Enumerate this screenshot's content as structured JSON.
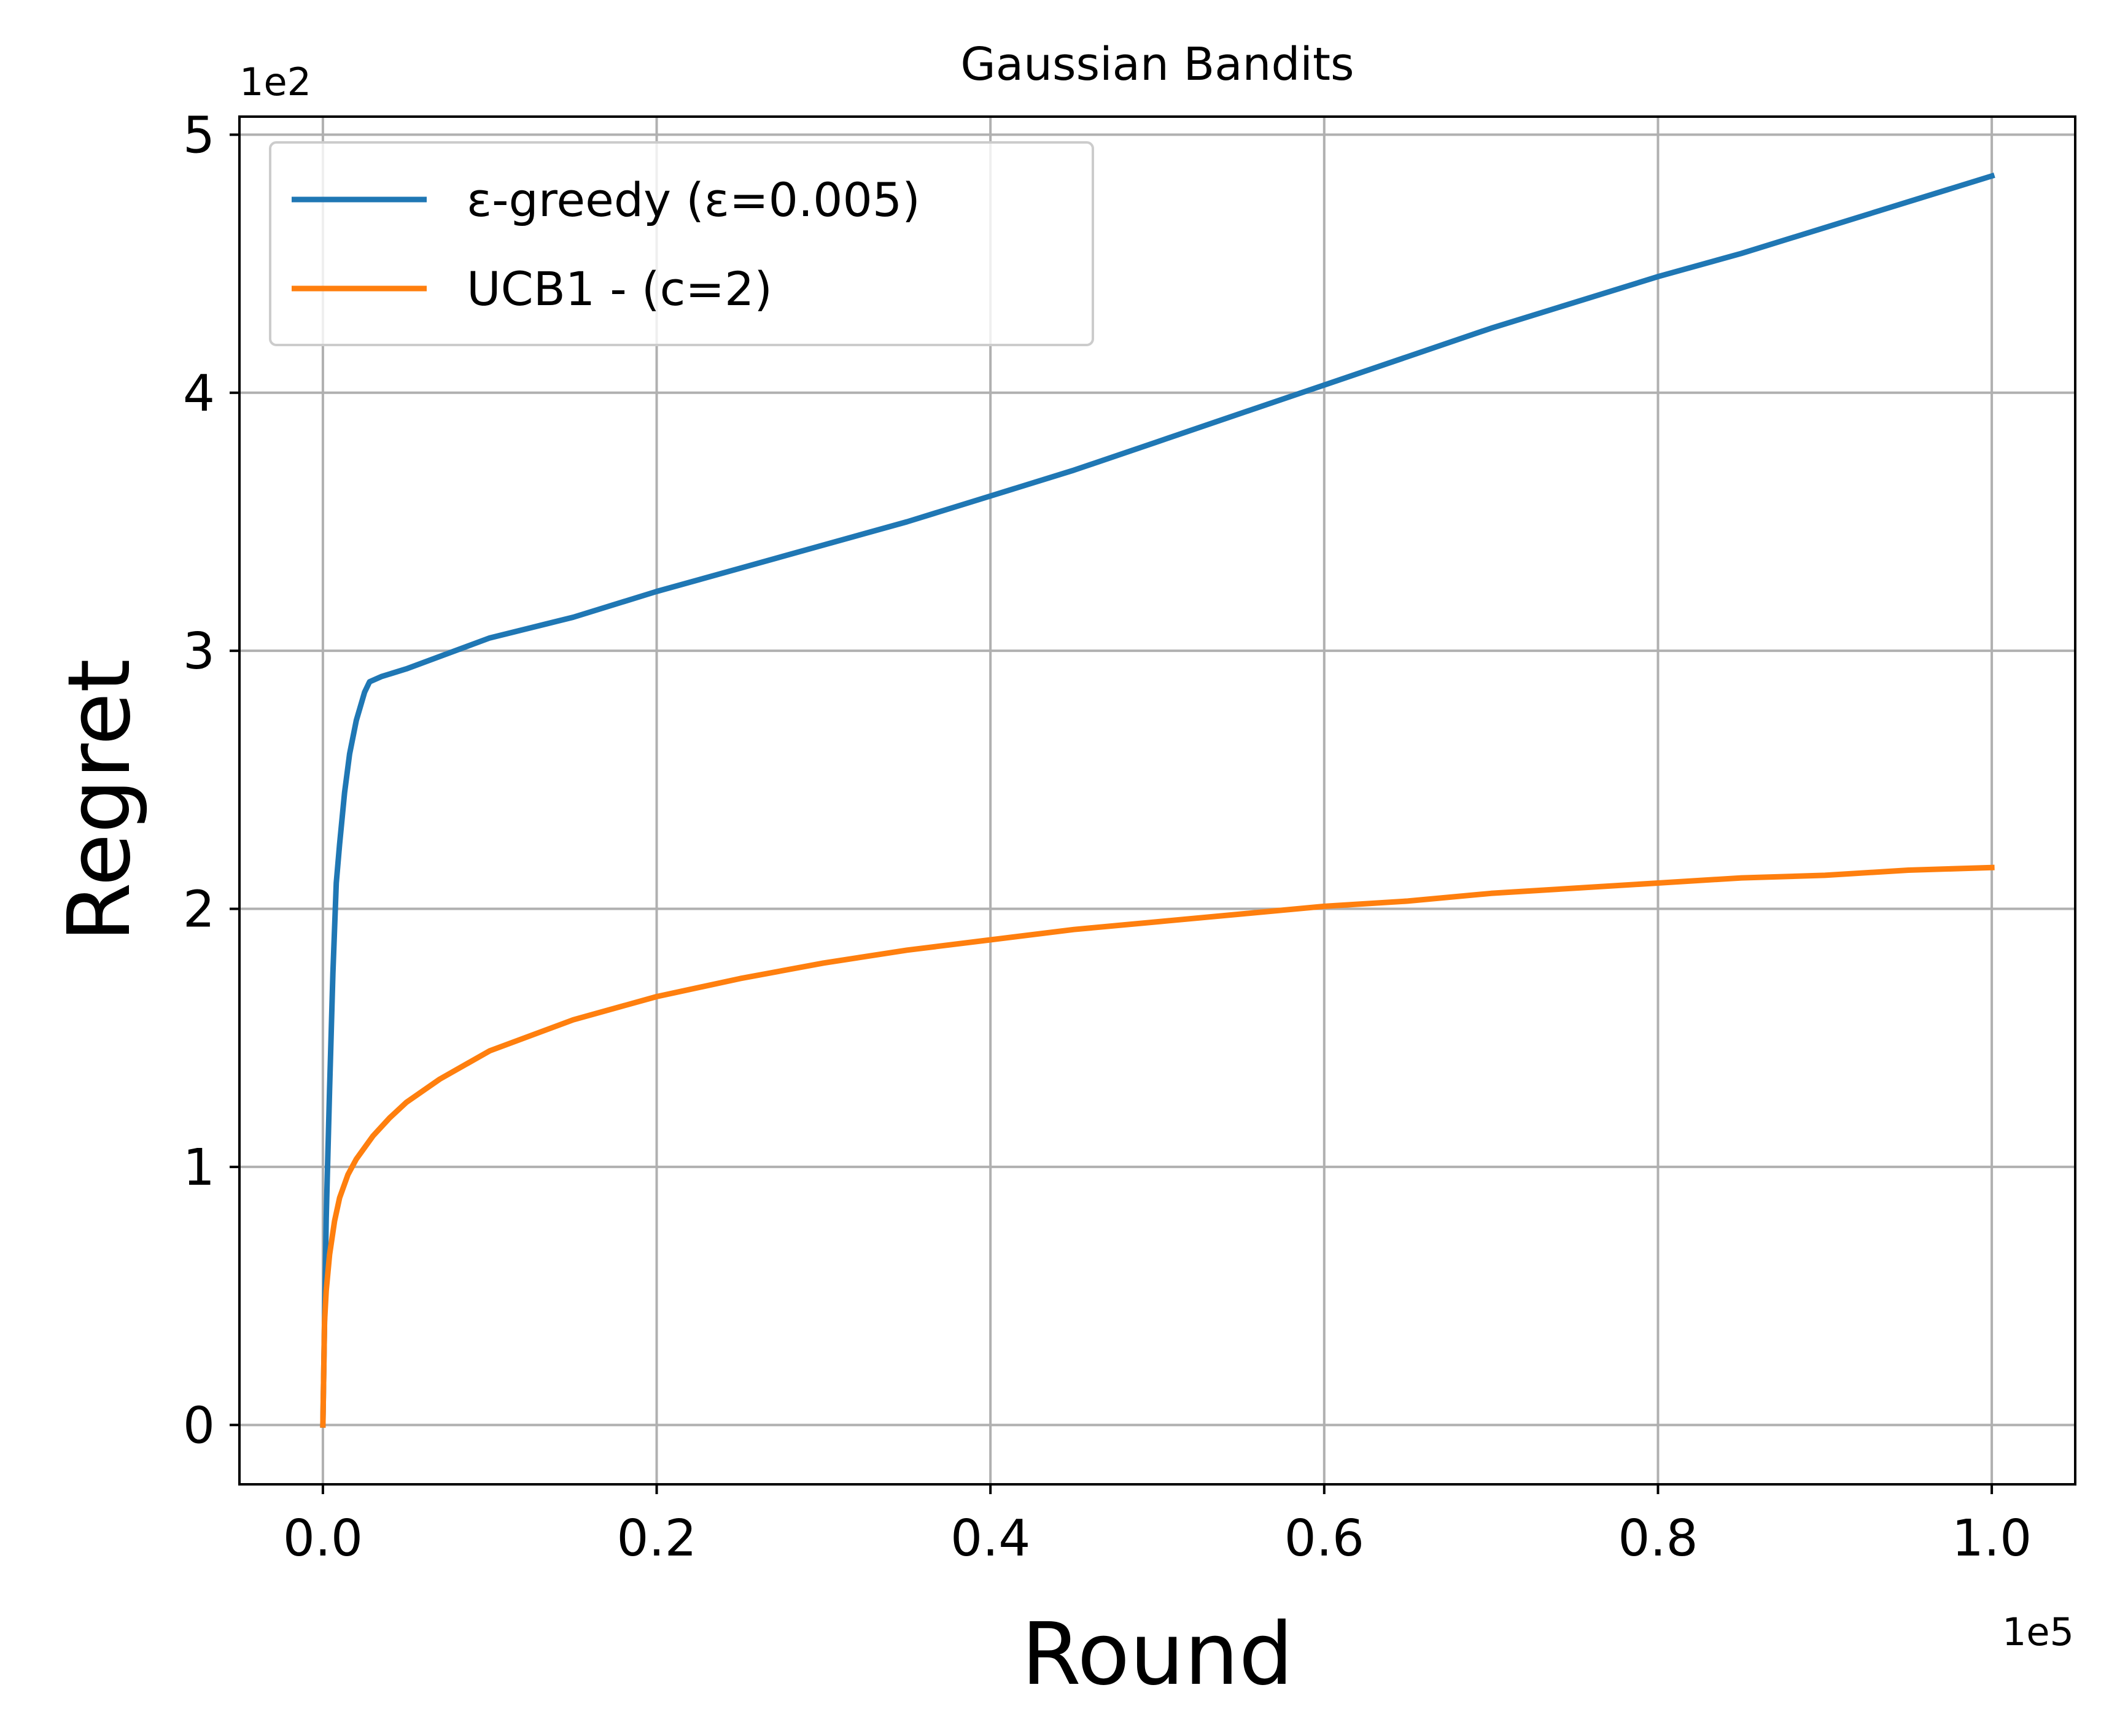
{
  "chart_data": {
    "type": "line",
    "title": "Gaussian Bandits",
    "xlabel": "Round",
    "ylabel": "Regret",
    "x_offset_label": "1e5",
    "y_offset_label": "1e2",
    "x_ticks": [
      0.0,
      0.2,
      0.4,
      0.6,
      0.8,
      1.0
    ],
    "x_tick_labels": [
      "0.0",
      "0.2",
      "0.4",
      "0.6",
      "0.8",
      "1.0"
    ],
    "y_ticks": [
      0,
      1,
      2,
      3,
      4,
      5
    ],
    "y_tick_labels": [
      "0",
      "1",
      "2",
      "3",
      "4",
      "5"
    ],
    "xlim": [
      -0.05,
      1.05
    ],
    "ylim": [
      -0.23,
      5.07
    ],
    "grid": true,
    "legend_position": "upper left",
    "series": [
      {
        "name": "ε-greedy (ε=0.005)",
        "color": "#1f77b4",
        "x": [
          0.0,
          0.002,
          0.004,
          0.006,
          0.008,
          0.01,
          0.013,
          0.016,
          0.02,
          0.025,
          0.028,
          0.035,
          0.05,
          0.075,
          0.1,
          0.15,
          0.2,
          0.25,
          0.3,
          0.35,
          0.4,
          0.45,
          0.5,
          0.55,
          0.6,
          0.65,
          0.7,
          0.75,
          0.8,
          0.85,
          0.9,
          0.95,
          1.0
        ],
        "y": [
          0.0,
          0.8,
          1.3,
          1.75,
          2.1,
          2.25,
          2.45,
          2.6,
          2.73,
          2.84,
          2.88,
          2.9,
          2.93,
          2.99,
          3.05,
          3.13,
          3.23,
          3.32,
          3.41,
          3.5,
          3.6,
          3.7,
          3.81,
          3.92,
          4.03,
          4.14,
          4.25,
          4.35,
          4.45,
          4.54,
          4.64,
          4.74,
          4.84
        ]
      },
      {
        "name": "UCB1 - (c=2)",
        "color": "#ff7f0e",
        "x": [
          0.0,
          0.001,
          0.002,
          0.004,
          0.007,
          0.01,
          0.015,
          0.02,
          0.03,
          0.04,
          0.05,
          0.07,
          0.1,
          0.15,
          0.2,
          0.25,
          0.3,
          0.35,
          0.4,
          0.45,
          0.5,
          0.55,
          0.6,
          0.65,
          0.7,
          0.75,
          0.8,
          0.85,
          0.9,
          0.95,
          1.0
        ],
        "y": [
          0.0,
          0.4,
          0.52,
          0.66,
          0.79,
          0.88,
          0.97,
          1.03,
          1.12,
          1.19,
          1.25,
          1.34,
          1.45,
          1.57,
          1.66,
          1.73,
          1.79,
          1.84,
          1.88,
          1.92,
          1.95,
          1.98,
          2.01,
          2.03,
          2.06,
          2.08,
          2.1,
          2.12,
          2.13,
          2.15,
          2.16
        ]
      }
    ]
  }
}
